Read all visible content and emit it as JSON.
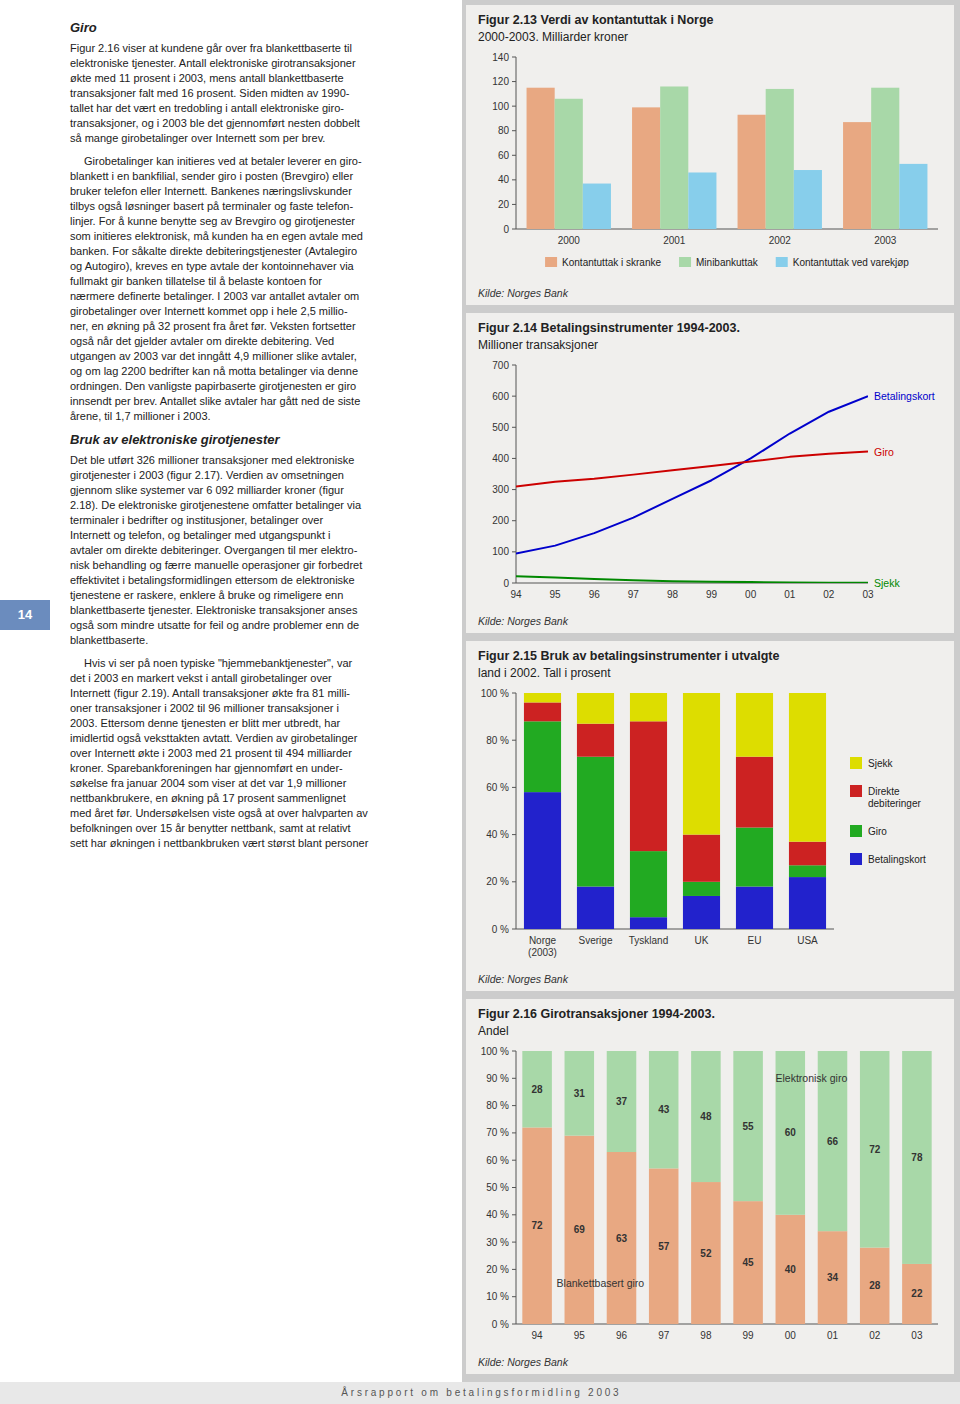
{
  "chart_data": [
    {
      "type": "bar",
      "title": "Figur 2.13 Verdi av kontantuttak i Norge",
      "subtitle": "2000-2003. Milliarder kroner",
      "categories": [
        "2000",
        "2001",
        "2002",
        "2003"
      ],
      "series": [
        {
          "name": "Kontantuttak i skranke",
          "color": "#E8A882",
          "values": [
            115,
            99,
            93,
            87
          ]
        },
        {
          "name": "Minibankuttak",
          "color": "#A8D8A8",
          "values": [
            106,
            116,
            114,
            115
          ]
        },
        {
          "name": "Kontantuttak ved varekjøp",
          "color": "#87CEEB",
          "values": [
            37,
            46,
            48,
            53
          ]
        }
      ],
      "ylim": [
        0,
        140
      ],
      "yticks": [
        0,
        20,
        40,
        60,
        80,
        100,
        120,
        140
      ],
      "legend": "bottom",
      "annotations": [
        "Kilde: Norges Bank"
      ]
    },
    {
      "type": "line",
      "title": "Figur 2.14 Betalingsinstrumenter 1994-2003.",
      "subtitle": "Millioner transaksjoner",
      "categories": [
        "94",
        "95",
        "96",
        "97",
        "98",
        "99",
        "00",
        "01",
        "02",
        "03"
      ],
      "series": [
        {
          "name": "Betalingskort",
          "color": "#0000CC",
          "values": [
            95,
            120,
            160,
            210,
            270,
            330,
            400,
            480,
            550,
            600
          ]
        },
        {
          "name": "Giro",
          "color": "#CC0000",
          "values": [
            310,
            325,
            335,
            348,
            362,
            376,
            390,
            405,
            415,
            422
          ]
        },
        {
          "name": "Sjekk",
          "color": "#008800",
          "values": [
            22,
            18,
            13,
            9,
            6,
            4,
            3,
            2,
            1,
            0.5
          ]
        }
      ],
      "ylim": [
        0,
        700
      ],
      "yticks": [
        0,
        100,
        200,
        300,
        400,
        500,
        600,
        700
      ],
      "annotations": [
        "Kilde: Norges Bank"
      ]
    },
    {
      "type": "bar",
      "stacked": true,
      "title": "Figur 2.15 Bruk av betalingsinstrumenter i utvalgte",
      "subtitle": "land i 2002. Tall i prosent",
      "categories": [
        "Norge\n(2003)",
        "Sverige",
        "Tyskland",
        "UK",
        "EU",
        "USA"
      ],
      "series": [
        {
          "name": "Betalingskort",
          "color": "#2222CC",
          "values": [
            58,
            18,
            5,
            14,
            18,
            22
          ]
        },
        {
          "name": "Giro",
          "color": "#22AA22",
          "values": [
            30,
            55,
            28,
            6,
            25,
            5
          ]
        },
        {
          "name": "Direkte\ndebiteringer",
          "color": "#CC2222",
          "values": [
            8,
            14,
            55,
            20,
            30,
            10
          ]
        },
        {
          "name": "Sjekk",
          "color": "#DDDD00",
          "values": [
            4,
            13,
            12,
            60,
            27,
            63
          ]
        }
      ],
      "ylim": [
        0,
        100
      ],
      "yticks": [
        {
          "value": 0,
          "label": "0 %"
        },
        {
          "value": 20,
          "label": "20 %"
        },
        {
          "value": 40,
          "label": "40 %"
        },
        {
          "value": 60,
          "label": "60 %"
        },
        {
          "value": 80,
          "label": "80 %"
        },
        {
          "value": 100,
          "label": "100 %"
        }
      ],
      "legend": "right",
      "annotations": [
        "Kilde: Norges Bank"
      ]
    },
    {
      "type": "bar",
      "stacked": true,
      "data_labels": true,
      "title": "Figur 2.16 Girotransaksjoner 1994-2003.",
      "subtitle": "Andel",
      "categories": [
        "94",
        "95",
        "96",
        "97",
        "98",
        "99",
        "00",
        "01",
        "02",
        "03"
      ],
      "series": [
        {
          "name": "Blankettbasert giro",
          "color": "#E8A882",
          "values": [
            72,
            69,
            63,
            57,
            52,
            45,
            40,
            34,
            28,
            22
          ]
        },
        {
          "name": "Elektronisk giro",
          "color": "#A8D8A8",
          "values": [
            28,
            31,
            37,
            43,
            48,
            55,
            60,
            66,
            72,
            78
          ]
        }
      ],
      "ylim": [
        0,
        100
      ],
      "yticks": [
        {
          "value": 0,
          "label": "0 %"
        },
        {
          "value": 10,
          "label": "10 %"
        },
        {
          "value": 20,
          "label": "20 %"
        },
        {
          "value": 30,
          "label": "30 %"
        },
        {
          "value": 40,
          "label": "40 %"
        },
        {
          "value": 50,
          "label": "50 %"
        },
        {
          "value": 60,
          "label": "60 %"
        },
        {
          "value": 70,
          "label": "70 %"
        },
        {
          "value": 80,
          "label": "80 %"
        },
        {
          "value": 90,
          "label": "90 %"
        },
        {
          "value": 100,
          "label": "100 %"
        }
      ],
      "annotations": [
        "Kilde: Norges Bank"
      ]
    }
  ],
  "annotations": [
    "Giro",
    "Figur 2.16 viser at kundene går over fra blankettbaserte til\nelektroniske tjenester. Antall elektroniske girotransaksjoner\nøkte med 11 prosent i 2003, mens antall blankettbaserte\ntransaksjoner falt med 16 prosent. Siden midten av 1990-\ntallet har det vært en tredobling i antall elektroniske giro-\ntransaksjoner, og i 2003 ble det gjennomført nesten dobbelt\nså mange girobetalinger over Internett som per brev.",
    "Girobetalinger kan initieres ved at betaler leverer en giro-\nblankett i en bankfilial, sender giro i posten (Brevgiro) eller\nbruker telefon eller Internett. Bankenes næringslivskunder\ntilbys også løsninger basert på terminaler og faste telefon-\nlinjer. For å kunne benytte seg av Brevgiro og girotjenester\nsom initieres elektronisk, må kunden ha en egen avtale med\nbanken. For såkalte direkte debiteringstjenester (Avtalegiro\nog Autogiro), kreves en type avtale der kontoinnehaver via\nfullmakt gir banken tillatelse til å belaste kontoen for\nnærmere definerte betalinger. I 2003 var antallet avtaler om\ngirobetalinger over Internett kommet opp i hele 2,5 millio-\nner, en økning på 32 prosent fra året før. Veksten fortsetter\nogså når det gjelder avtaler om direkte debitering. Ved\nutgangen av 2003 var det inngått 4,9 millioner slike avtaler,\nog om lag 2200 bedrifter kan nå motta betalinger via denne\nordningen. Den vanligste papirbaserte girotjenesten er giro\ninnsendt per brev. Antallet slike avtaler har gått ned de siste\nårene, til 1,7 millioner i 2003.",
    "Bruk av elektroniske girotjenester",
    "Det ble utført 326 millioner transaksjoner med elektroniske\ngirotjenester i 2003 (figur 2.17). Verdien av omsetningen\ngjennom slike systemer var 6 092 milliarder kroner (figur\n2.18). De elektroniske girotjenestene omfatter betalinger via\nterminaler i bedrifter og institusjoner, betalinger over\nInternett og telefon, og betalinger med utgangspunkt i\navtaler om direkte debiteringer. Overgangen til mer elektro-\nnisk behandling og færre manuelle operasjoner gir forbedret\neffektivitet i betalingsformidlingen ettersom de elektroniske\ntjenestene er raskere, enklere å bruke og rimeligere enn\nblankettbaserte tjenester. Elektroniske transaksjoner anses\nogså som mindre utsatte for feil og andre problemer enn de\nblankettbaserte.",
    "Hvis vi ser på noen typiske \"hjemmebanktjenester\", var\ndet i 2003 en markert vekst i antall girobetalinger over\nInternett (figur 2.19). Antall transaksjoner økte fra 81 milli-\noner transaksjoner i 2002 til 96 millioner transaksjoner i\n2003. Ettersom denne tjenesten er blitt mer utbredt, har\nimidlertid også veksttakten avtatt. Verdien av girobetalinger\nover Internett økte i 2003 med 21 prosent til 494 milliarder\nkroner. Sparebankforeningen har gjennomført en under-\nsøkelse fra januar 2004 som viser at det var 1,9 millioner\nnettbankbrukere, en økning på 17 prosent sammenlignet\nmed året før. Undersøkelsen viste også at over halvparten av\nbefolkningen over 15 år benytter nettbank, samt at relativt\nsett har økningen i nettbankbruken vært størst blant personer",
    "14",
    "Å r s r a p p o r t   o m   b e t a l i n g s f o r m i d l i n g   2 0 0 3"
  ]
}
